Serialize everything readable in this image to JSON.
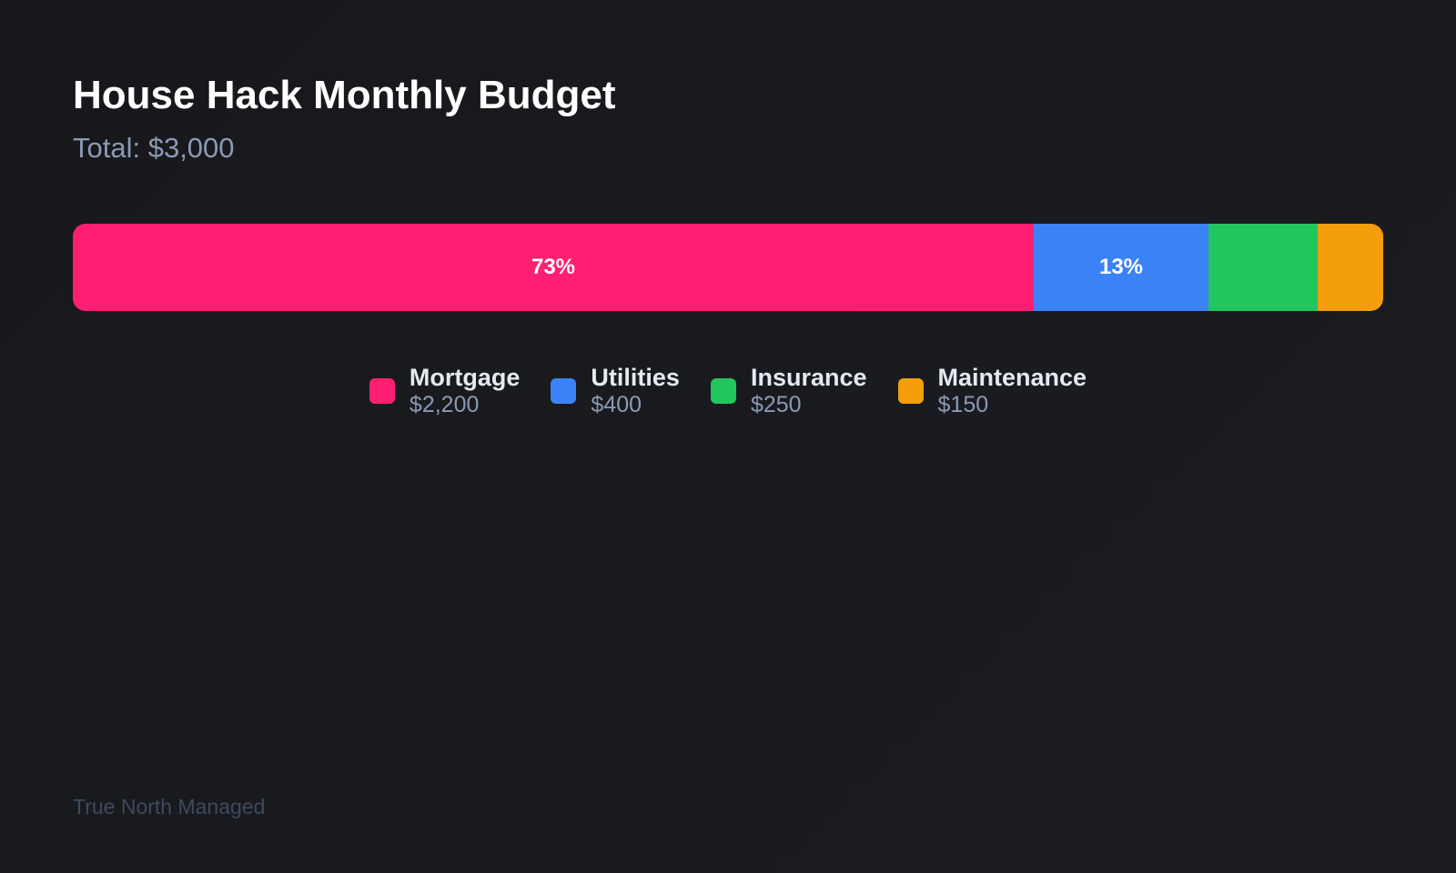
{
  "title": "House Hack Monthly Budget",
  "subtitle": "Total: $3,000",
  "footer": "True North Managed",
  "chart_data": {
    "type": "bar",
    "orientation": "horizontal-stacked-100",
    "title": "House Hack Monthly Budget",
    "total": 3000,
    "categories": [
      "Mortgage",
      "Utilities",
      "Insurance",
      "Maintenance"
    ],
    "values": [
      2200,
      400,
      250,
      150
    ],
    "value_labels": [
      "$2,200",
      "$400",
      "$250",
      "$150"
    ],
    "segment_labels": [
      "73%",
      "13%",
      "",
      ""
    ],
    "colors": [
      "#ff1f72",
      "#3b82f6",
      "#22c55e",
      "#f59e0b"
    ],
    "legend": "bottom-center",
    "grid": false
  }
}
